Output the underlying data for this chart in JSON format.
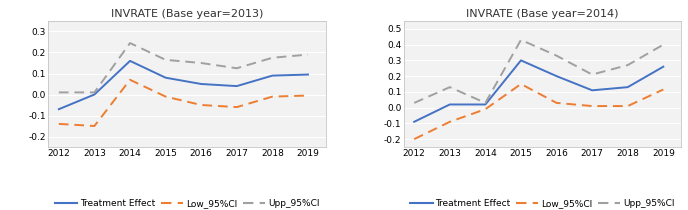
{
  "left": {
    "title": "INVRATE (Base year=2013)",
    "years": [
      2012,
      2013,
      2014,
      2015,
      2016,
      2017,
      2018,
      2019
    ],
    "treatment": [
      -0.07,
      0.0,
      0.16,
      0.08,
      0.05,
      0.04,
      0.09,
      0.095
    ],
    "low_ci": [
      -0.14,
      -0.15,
      0.07,
      -0.01,
      -0.05,
      -0.06,
      -0.01,
      -0.005
    ],
    "upp_ci": [
      0.01,
      0.01,
      0.245,
      0.165,
      0.15,
      0.125,
      0.175,
      0.19
    ],
    "ylim": [
      -0.25,
      0.35
    ],
    "yticks": [
      -0.2,
      -0.1,
      0.0,
      0.1,
      0.2,
      0.3
    ]
  },
  "right": {
    "title": "INVRATE (Base year=2014)",
    "years": [
      2012,
      2013,
      2014,
      2015,
      2016,
      2017,
      2018,
      2019
    ],
    "treatment": [
      -0.09,
      0.02,
      0.02,
      0.3,
      0.2,
      0.11,
      0.13,
      0.26
    ],
    "low_ci": [
      -0.2,
      -0.09,
      -0.01,
      0.15,
      0.03,
      0.01,
      0.01,
      0.115
    ],
    "upp_ci": [
      0.03,
      0.13,
      0.03,
      0.43,
      0.33,
      0.21,
      0.27,
      0.4
    ],
    "ylim": [
      -0.25,
      0.55
    ],
    "yticks": [
      -0.2,
      -0.1,
      0.0,
      0.1,
      0.2,
      0.3,
      0.4,
      0.5
    ]
  },
  "legend_labels": [
    "Treatment Effect",
    "Low_95%CI",
    "Upp_95%CI"
  ],
  "treatment_color": "#4472c4",
  "low_ci_color": "#ed7d31",
  "upp_ci_color": "#a0a0a0",
  "bg_color": "#ffffff",
  "plot_bg_color": "#f2f2f2",
  "grid_color": "#ffffff",
  "title_fontsize": 8,
  "tick_fontsize": 6.5,
  "legend_fontsize": 6.5
}
